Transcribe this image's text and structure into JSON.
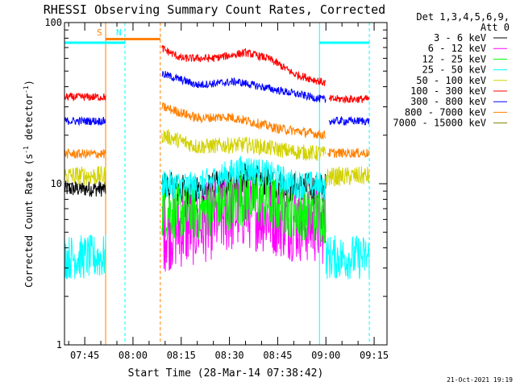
{
  "chart_data": {
    "type": "line",
    "title": "RHESSI Observing Summary Count Rates, Corrected",
    "xlabel": "Start Time (28-Mar-14 07:38:42)",
    "ylabel": "Corrected Count Rate (s⁻¹ detector⁻¹)",
    "ylabel_main": "Corrected Count Rate (s",
    "ylabel_sup1": "-1",
    "ylabel_mid": " detector",
    "ylabel_sup2": "-1",
    "ylabel_end": ")",
    "yscale": "log",
    "ylim": [
      1,
      100
    ],
    "xlim": [
      "07:38:42",
      "09:19:00"
    ],
    "x_ticks": [
      "07:45",
      "08:00",
      "08:15",
      "08:30",
      "08:45",
      "09:00",
      "09:15"
    ],
    "y_ticks": [
      "1",
      "10",
      "100"
    ],
    "legend_header": [
      "Det 1,3,4,5,6,9,",
      "Att 0"
    ],
    "legend_position": "top-right",
    "footer_date": "21-Oct-2021 19:19",
    "markers": [
      {
        "label": "S",
        "color": "#ff8000",
        "time": "07:51:30",
        "style": "solid"
      },
      {
        "label": "N",
        "color": "#00ffff",
        "time": "07:57:30",
        "style": "dashed"
      },
      {
        "label": "",
        "color": "#ff8000",
        "time": "08:08:30",
        "style": "dashed"
      },
      {
        "label": "",
        "color": "#00ffff",
        "time": "08:58:00",
        "style": "solid"
      },
      {
        "label": "",
        "color": "#00ffff",
        "time": "09:13:30",
        "style": "dashed"
      }
    ],
    "bars": [
      {
        "color": "#00ffff",
        "start": "07:38:42",
        "end": "07:57:30",
        "value": 75
      },
      {
        "color": "#ff8000",
        "start": "07:51:30",
        "end": "08:08:30",
        "value": 79
      },
      {
        "color": "#00ffff",
        "start": "08:58:00",
        "end": "09:13:30",
        "value": 75
      }
    ],
    "series": [
      {
        "name": "3 - 6 keV",
        "color": "#000000",
        "segments": [
          {
            "points": [
              [
                "07:38:42",
                9.3
              ],
              [
                "07:51:30",
                9.3
              ]
            ],
            "jitter": 0.05
          },
          {
            "points": [
              [
                "08:09:00",
                9.6
              ],
              [
                "08:20:00",
                8.8
              ],
              [
                "08:35:00",
                10.7
              ],
              [
                "08:50:00",
                9.4
              ],
              [
                "09:00:00",
                9.3
              ]
            ],
            "jitter": 0.1
          }
        ]
      },
      {
        "name": "6 - 12 keV",
        "color": "#ff00ff",
        "segments": [
          {
            "points": [
              [
                "08:09:00",
                5.0
              ],
              [
                "08:20:00",
                5.5
              ],
              [
                "08:35:00",
                7.0
              ],
              [
                "08:50:00",
                5.8
              ],
              [
                "09:00:00",
                5.5
              ]
            ],
            "jitter": 0.25
          }
        ]
      },
      {
        "name": "12 - 25 keV",
        "color": "#00ff00",
        "segments": [
          {
            "points": [
              [
                "08:09:00",
                7.0
              ],
              [
                "08:20:00",
                6.6
              ],
              [
                "08:35:00",
                8.3
              ],
              [
                "08:50:00",
                6.9
              ],
              [
                "09:00:00",
                6.3
              ]
            ],
            "jitter": 0.18
          }
        ]
      },
      {
        "name": "25 - 50 keV",
        "color": "#00ffff",
        "segments": [
          {
            "points": [
              [
                "07:38:42",
                3.5
              ],
              [
                "07:51:30",
                3.5
              ]
            ],
            "jitter": 0.14
          },
          {
            "points": [
              [
                "08:09:00",
                10.0
              ],
              [
                "08:20:00",
                9.6
              ],
              [
                "08:35:00",
                12.5
              ],
              [
                "08:50:00",
                10.0
              ],
              [
                "09:00:00",
                9.6
              ]
            ],
            "jitter": 0.09
          },
          {
            "points": [
              [
                "09:00:00",
                3.5
              ],
              [
                "09:13:30",
                3.5
              ]
            ],
            "jitter": 0.14
          }
        ]
      },
      {
        "name": "50 - 100 keV",
        "color": "#d2d200",
        "segments": [
          {
            "points": [
              [
                "07:38:42",
                11.2
              ],
              [
                "07:51:30",
                11.2
              ]
            ],
            "jitter": 0.06
          },
          {
            "points": [
              [
                "08:09:00",
                20.0
              ],
              [
                "08:20:00",
                17.0
              ],
              [
                "08:35:00",
                17.5
              ],
              [
                "08:50:00",
                15.8
              ],
              [
                "09:00:00",
                15.3
              ]
            ],
            "jitter": 0.05
          },
          {
            "points": [
              [
                "09:00:00",
                11.0
              ],
              [
                "09:13:30",
                11.2
              ]
            ],
            "jitter": 0.06
          }
        ]
      },
      {
        "name": "100 - 300 keV",
        "color": "#ff0000",
        "segments": [
          {
            "points": [
              [
                "07:38:42",
                34.5
              ],
              [
                "07:51:30",
                34.5
              ]
            ],
            "jitter": 0.025
          },
          {
            "points": [
              [
                "08:09:00",
                69.0
              ],
              [
                "08:15:00",
                60.0
              ],
              [
                "08:25:00",
                60.0
              ],
              [
                "08:35:00",
                65.0
              ],
              [
                "08:42:00",
                60.0
              ],
              [
                "08:50:00",
                48.0
              ],
              [
                "09:00:00",
                42.0
              ]
            ],
            "jitter": 0.025
          },
          {
            "points": [
              [
                "09:01:00",
                33.5
              ],
              [
                "09:13:30",
                33.5
              ]
            ],
            "jitter": 0.025
          }
        ]
      },
      {
        "name": "300 - 800 keV",
        "color": "#0000ff",
        "segments": [
          {
            "points": [
              [
                "07:38:42",
                24.5
              ],
              [
                "07:51:30",
                24.5
              ]
            ],
            "jitter": 0.025
          },
          {
            "points": [
              [
                "08:09:00",
                48.0
              ],
              [
                "08:20:00",
                41.0
              ],
              [
                "08:32:00",
                43.0
              ],
              [
                "08:45:00",
                38.0
              ],
              [
                "09:00:00",
                33.0
              ]
            ],
            "jitter": 0.025
          },
          {
            "points": [
              [
                "09:01:00",
                24.5
              ],
              [
                "09:13:30",
                24.5
              ]
            ],
            "jitter": 0.025
          }
        ]
      },
      {
        "name": "800 - 7000 keV",
        "color": "#ff8000",
        "segments": [
          {
            "points": [
              [
                "07:38:42",
                15.3
              ],
              [
                "07:51:30",
                15.3
              ]
            ],
            "jitter": 0.03
          },
          {
            "points": [
              [
                "08:09:00",
                30.0
              ],
              [
                "08:20:00",
                25.5
              ],
              [
                "08:30:00",
                26.0
              ],
              [
                "08:45:00",
                22.0
              ],
              [
                "09:00:00",
                20.0
              ]
            ],
            "jitter": 0.03
          },
          {
            "points": [
              [
                "09:00:30",
                15.5
              ],
              [
                "09:13:30",
                15.5
              ]
            ],
            "jitter": 0.03
          }
        ]
      },
      {
        "name": "7000 - 15000 keV",
        "color": "#808000",
        "segments": []
      }
    ]
  }
}
